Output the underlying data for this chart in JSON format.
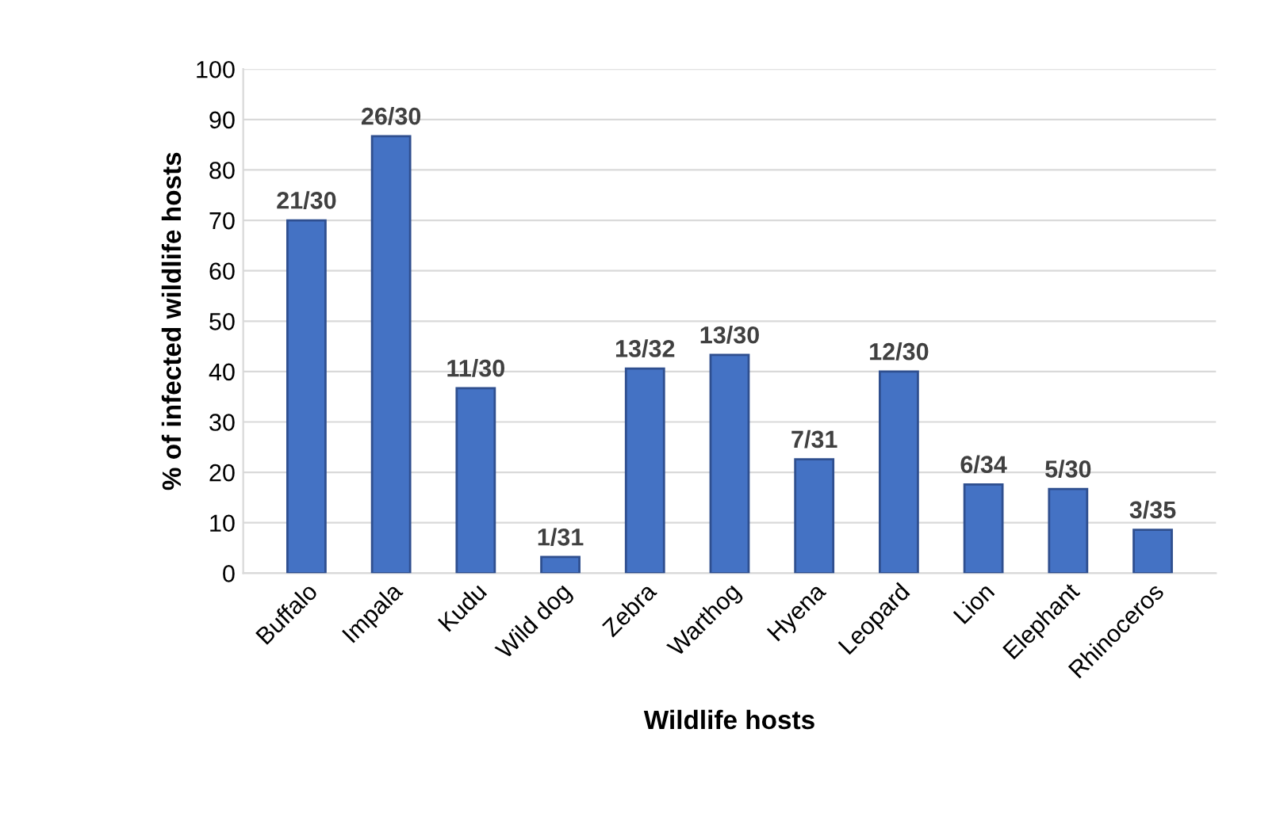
{
  "chart_data": {
    "type": "bar",
    "xlabel": "Wildlife hosts",
    "ylabel": "% of infected wildlife hosts",
    "categories": [
      "Buffalo",
      "Impala",
      "Kudu",
      "Wild dog",
      "Zebra",
      "Warthog",
      "Hyena",
      "Leopard",
      "Lion",
      "Elephant",
      "Rhinoceros"
    ],
    "values": [
      70,
      86.7,
      36.7,
      3.2,
      40.6,
      43.3,
      22.6,
      40,
      17.6,
      16.7,
      8.6
    ],
    "value_labels": [
      "21/30",
      "26/30",
      "11/30",
      "1/31",
      "13/32",
      "13/30",
      "7/31",
      "12/30",
      "6/34",
      "5/30",
      "3/35"
    ],
    "color": "#4472c4",
    "ylim": [
      0,
      100
    ],
    "yticks": [
      0,
      10,
      20,
      30,
      40,
      50,
      60,
      70,
      80,
      90,
      100
    ],
    "grid": "y"
  }
}
